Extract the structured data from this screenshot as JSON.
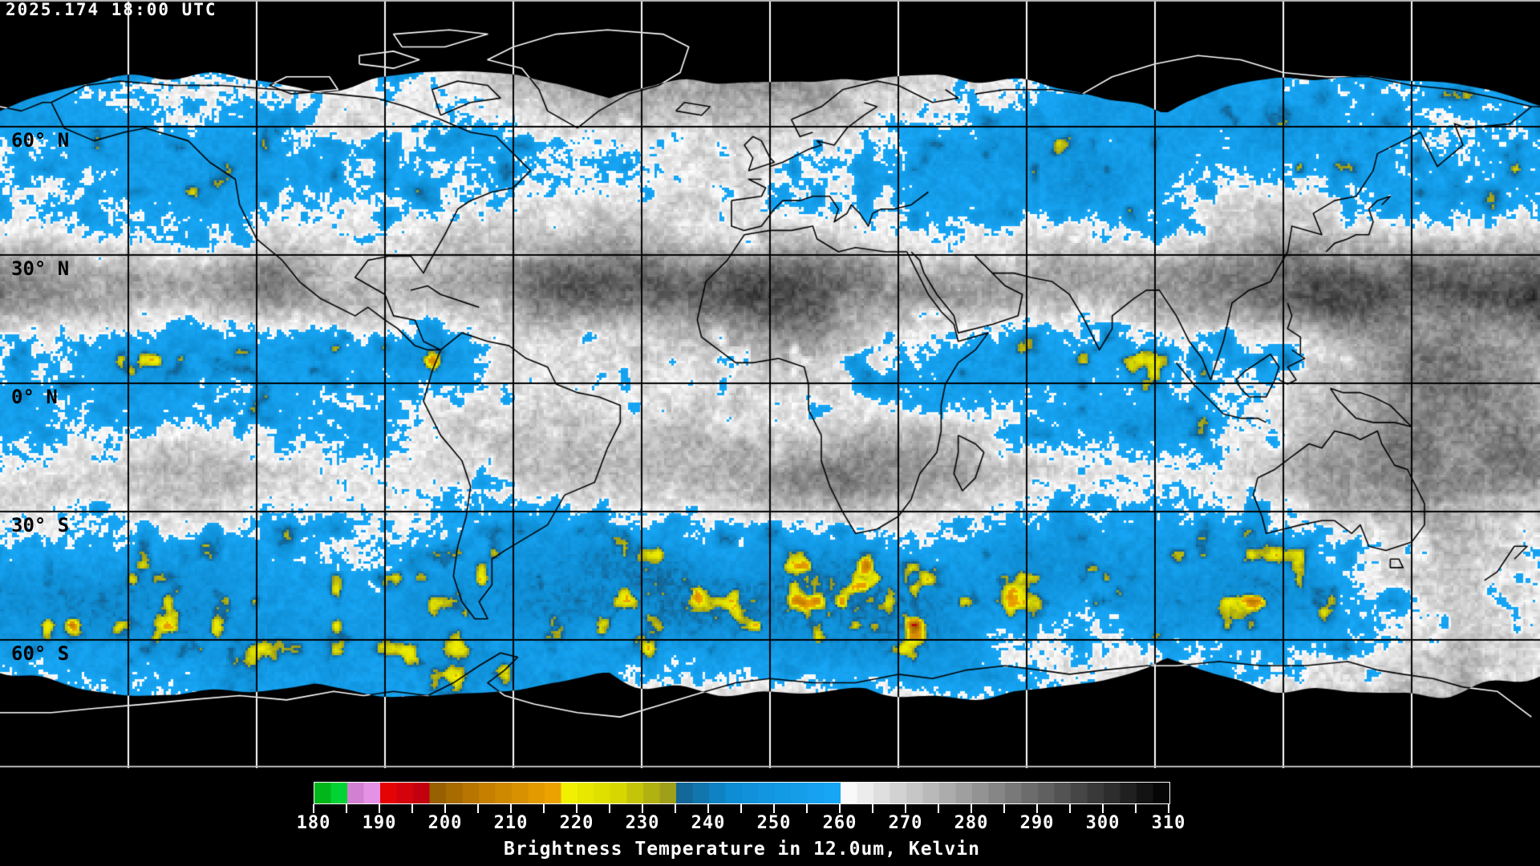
{
  "header": {
    "timestamp": "2025.174 18:00 UTC"
  },
  "map": {
    "latitude_labels": [
      "60° N",
      "30° N",
      "0° N",
      "30° S",
      "60° S"
    ],
    "grid": {
      "lat_step_deg": 30,
      "lon_step_deg": 30
    },
    "colors": {
      "background": "#000000",
      "grid_on_data": "#000000",
      "grid_on_void": "#FFFFFF",
      "coast_on_data": "#000000",
      "coast_on_void": "#FFFFFF",
      "map_border": "#B8B8B8",
      "timestamp_text": "#FFFFFF",
      "latitude_label_text": "#000000"
    }
  },
  "legend": {
    "title": "Brightness Temperature in 12.0um, Kelvin",
    "scale_min": 180,
    "scale_max": 310,
    "major_tick_step": 10,
    "minor_tick_step": 5,
    "tick_labels": [
      "180",
      "190",
      "200",
      "210",
      "220",
      "230",
      "240",
      "250",
      "260",
      "270",
      "280",
      "290",
      "300",
      "310"
    ],
    "text_color": "#FFFFFF",
    "palette_stops": [
      {
        "value": 180.0,
        "color": "#00A80A"
      },
      {
        "value": 184.9,
        "color": "#00E040"
      },
      {
        "value": 185.0,
        "color": "#C878C8"
      },
      {
        "value": 189.9,
        "color": "#EE99EE"
      },
      {
        "value": 190.0,
        "color": "#EE0404"
      },
      {
        "value": 197.4,
        "color": "#BB0010"
      },
      {
        "value": 197.5,
        "color": "#8F5A00"
      },
      {
        "value": 205.0,
        "color": "#C07C00"
      },
      {
        "value": 217.9,
        "color": "#F2A800"
      },
      {
        "value": 218.0,
        "color": "#F2F200"
      },
      {
        "value": 226.0,
        "color": "#D8D800"
      },
      {
        "value": 234.9,
        "color": "#96961E"
      },
      {
        "value": 235.0,
        "color": "#14608F"
      },
      {
        "value": 243.0,
        "color": "#0E8CD2"
      },
      {
        "value": 259.9,
        "color": "#18A8F8"
      },
      {
        "value": 260.0,
        "color": "#FFFFFF"
      },
      {
        "value": 310.0,
        "color": "#000000"
      }
    ]
  }
}
